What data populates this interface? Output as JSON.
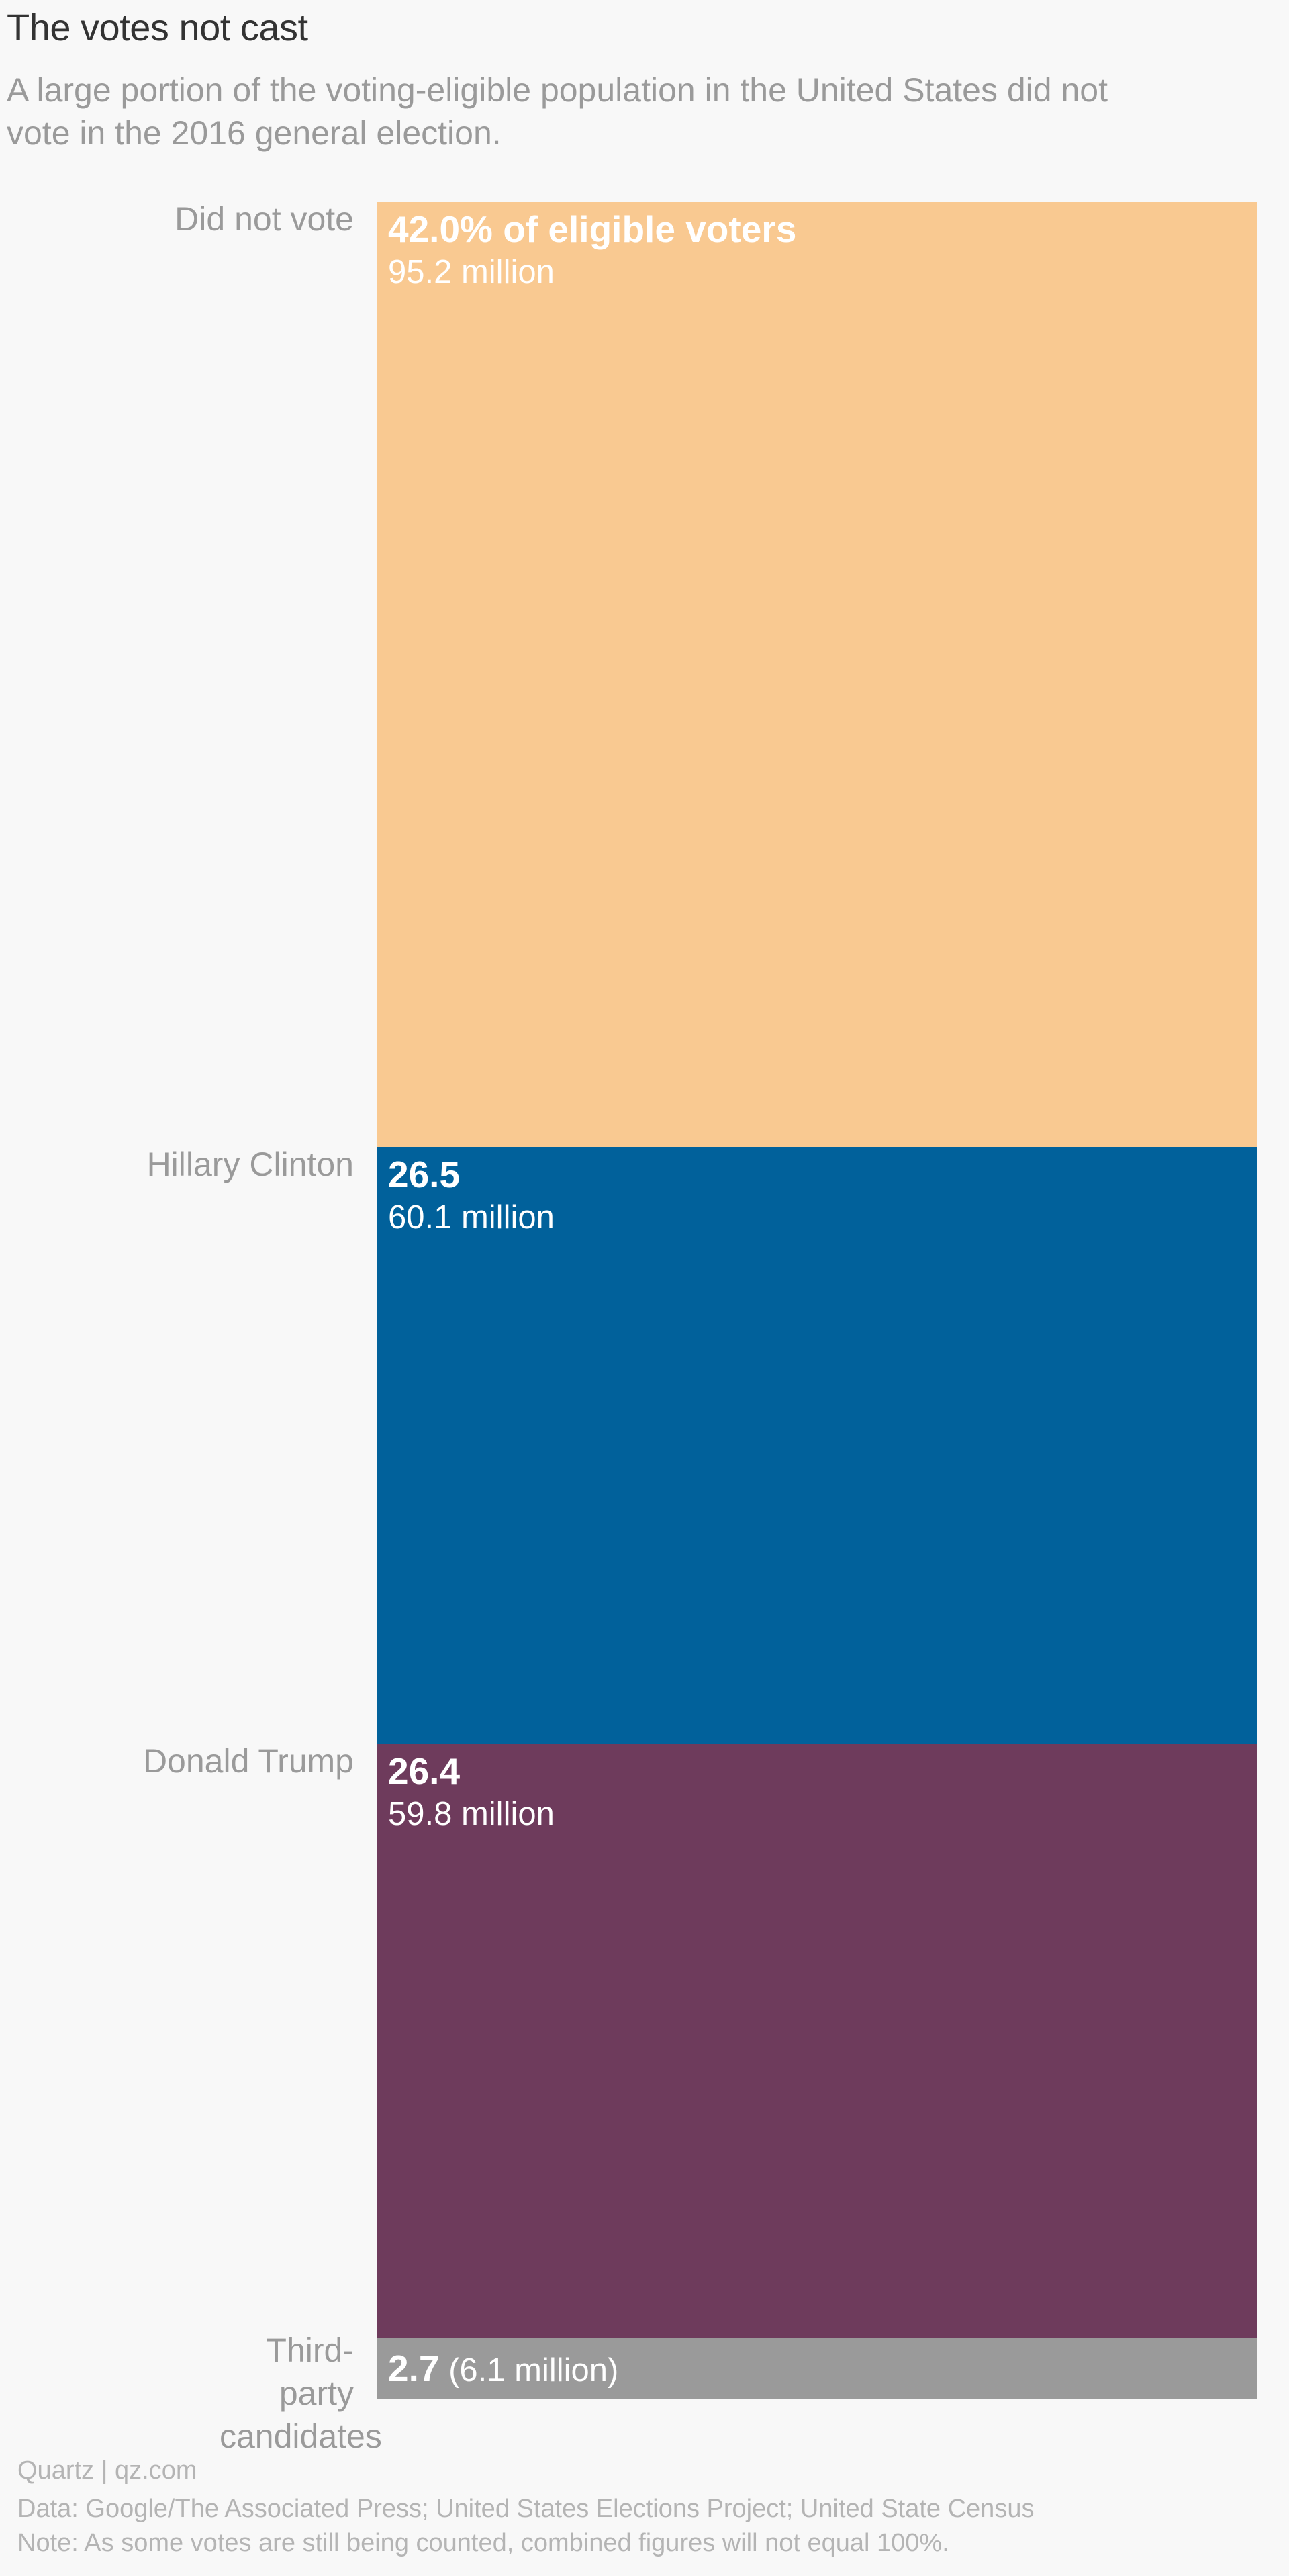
{
  "header": {
    "title": "The votes not cast",
    "subtitle": "A large portion of the voting-eligible population in the United States did not vote in the 2016 general election."
  },
  "chart_data": {
    "type": "bar",
    "orientation": "stacked-vertical",
    "categories": [
      "Did not vote",
      "Hillary Clinton",
      "Donald Trump",
      "Third-party candidates"
    ],
    "values": [
      42.0,
      26.5,
      26.4,
      2.7
    ],
    "value_unit": "% of eligible voters",
    "value_labels": [
      "42.0% of eligible voters",
      "26.5",
      "26.4",
      "2.7"
    ],
    "counts_millions": [
      95.2,
      60.1,
      59.8,
      6.1
    ],
    "count_labels": [
      "95.2 million",
      "60.1 million",
      "59.8 million",
      "(6.1 million)"
    ],
    "colors": [
      "#f9c991",
      "#01619b",
      "#6e3b5c",
      "#9a9a9a"
    ]
  },
  "footer": {
    "source_line": "Quartz | qz.com",
    "data_line": "Data: Google/The Associated Press; United States Elections Project; United State Census",
    "note_line": "Note: As some votes are still being counted, combined figures will not equal 100%."
  }
}
